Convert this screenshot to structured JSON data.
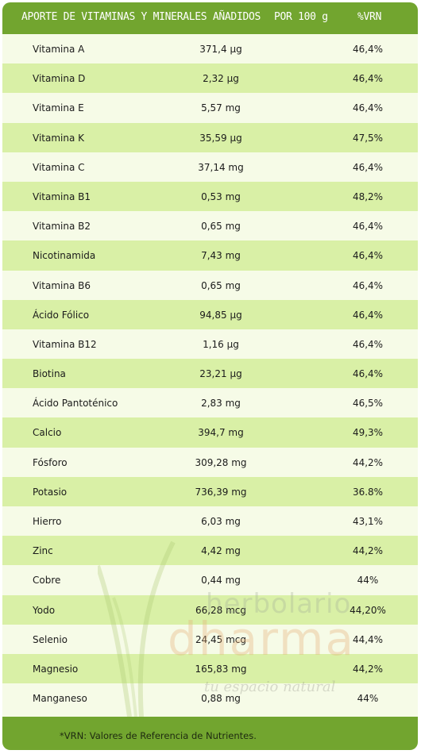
{
  "header": {
    "title": "APORTE DE VITAMINAS Y MINERALES AÑADIDOS",
    "per": "POR 100 g",
    "vrn": "%VRN"
  },
  "rows": [
    {
      "name": "Vitamina A",
      "amount": "371,4 µg",
      "pct": "46,4%"
    },
    {
      "name": "Vitamina D",
      "amount": "2,32 µg",
      "pct": "46,4%"
    },
    {
      "name": "Vitamina E",
      "amount": "5,57 mg",
      "pct": "46,4%"
    },
    {
      "name": "Vitamina K",
      "amount": "35,59 µg",
      "pct": "47,5%"
    },
    {
      "name": "Vitamina C",
      "amount": "37,14 mg",
      "pct": "46,4%"
    },
    {
      "name": "Vitamina B1",
      "amount": "0,53 mg",
      "pct": "48,2%"
    },
    {
      "name": "Vitamina B2",
      "amount": "0,65 mg",
      "pct": "46,4%"
    },
    {
      "name": "Nicotinamida",
      "amount": "7,43 mg",
      "pct": "46,4%"
    },
    {
      "name": "Vitamina B6",
      "amount": "0,65 mg",
      "pct": "46,4%"
    },
    {
      "name": "Ácido Fólico",
      "amount": "94,85 µg",
      "pct": "46,4%"
    },
    {
      "name": "Vitamina B12",
      "amount": "1,16 µg",
      "pct": "46,4%"
    },
    {
      "name": "Biotina",
      "amount": "23,21 µg",
      "pct": "46,4%"
    },
    {
      "name": "Ácido Pantoténico",
      "amount": "2,83 mg",
      "pct": "46,5%"
    },
    {
      "name": "Calcio",
      "amount": "394,7 mg",
      "pct": "49,3%"
    },
    {
      "name": "Fósforo",
      "amount": "309,28 mg",
      "pct": "44,2%"
    },
    {
      "name": "Potasio",
      "amount": "736,39 mg",
      "pct": "36.8%"
    },
    {
      "name": "Hierro",
      "amount": "6,03 mg",
      "pct": "43,1%"
    },
    {
      "name": "Zinc",
      "amount": "4,42 mg",
      "pct": "44,2%"
    },
    {
      "name": "Cobre",
      "amount": "0,44 mg",
      "pct": "44%"
    },
    {
      "name": "Yodo",
      "amount": "66,28 mcg",
      "pct": "44,20%"
    },
    {
      "name": "Selenio",
      "amount": "24,45 mcg",
      "pct": "44,4%"
    },
    {
      "name": "Magnesio",
      "amount": "165,83 mg",
      "pct": "44,2%"
    },
    {
      "name": "Manganeso",
      "amount": "0,88 mg",
      "pct": "44%"
    }
  ],
  "footer": {
    "note": "*VRN: Valores de Referencia de Nutrientes."
  },
  "watermark": {
    "line1": "herbolario",
    "line2": "dharma",
    "line3": "tu espacio natural"
  },
  "colors": {
    "header": "#72a52f",
    "row_dark": "#d9f0a6",
    "row_light": "#f6fbe7"
  }
}
